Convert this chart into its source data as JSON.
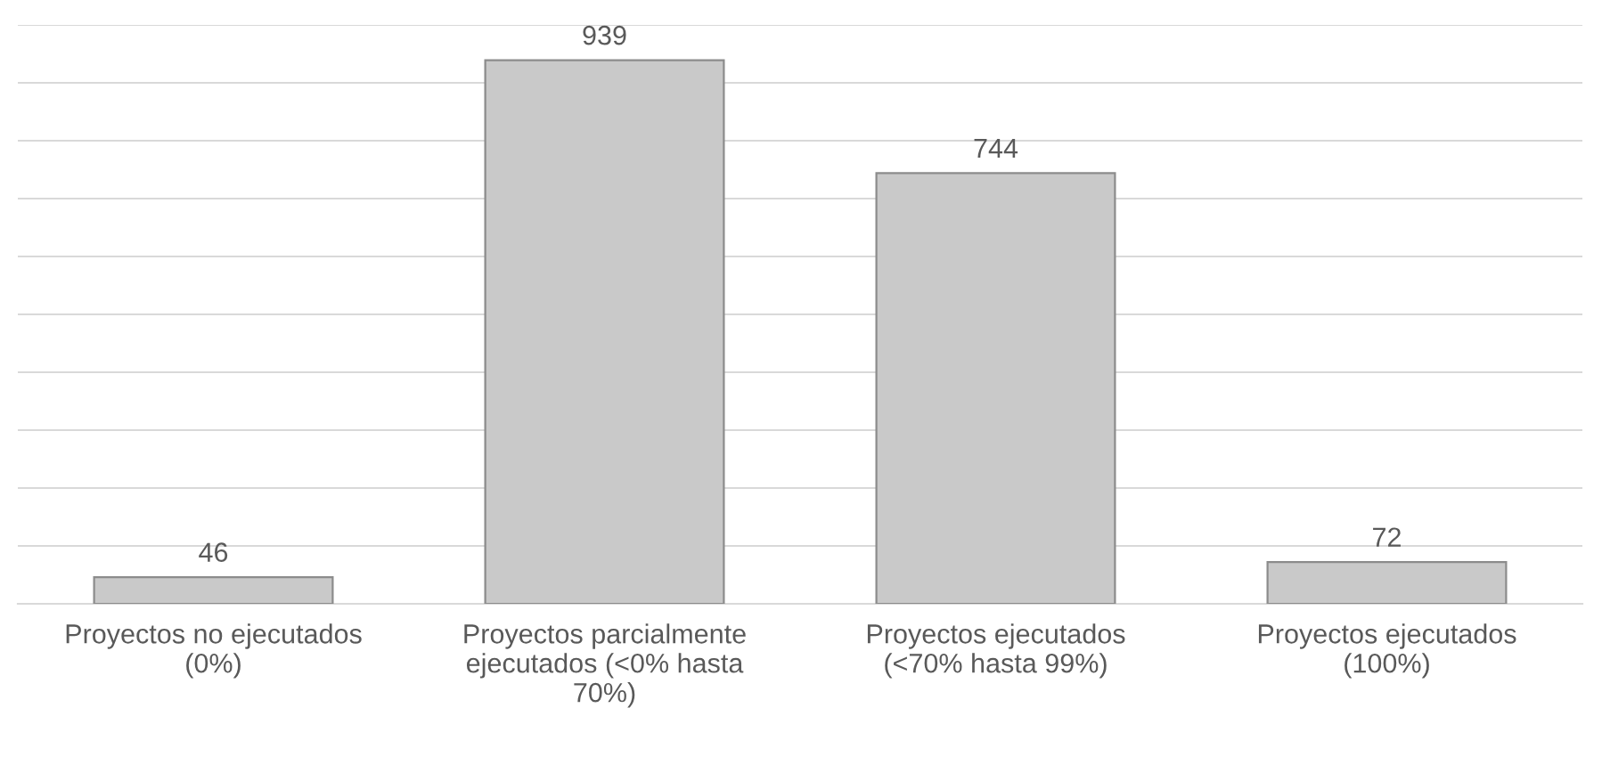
{
  "chart_data": {
    "type": "bar",
    "categories": [
      "Proyectos no ejecutados\n(0%)",
      "Proyectos parcialmente\nejecutados (<0% hasta\n70%)",
      "Proyectos ejecutados\n(<70% hasta 99%)",
      "Proyectos ejecutados\n(100%)"
    ],
    "values": [
      46,
      939,
      744,
      72
    ],
    "color": "#c9c9c9",
    "ylim": [
      0,
      1000
    ],
    "yticks": [
      {
        "value": 0,
        "label": null
      },
      {
        "value": 100,
        "label": null
      },
      {
        "value": 200,
        "label": null
      },
      {
        "value": 300,
        "label": null
      },
      {
        "value": 400,
        "label": null
      },
      {
        "value": 500,
        "label": null
      },
      {
        "value": 600,
        "label": null
      },
      {
        "value": 700,
        "label": null
      },
      {
        "value": 800,
        "label": null
      },
      {
        "value": 900,
        "label": null
      },
      {
        "value": 1000,
        "label": null
      }
    ],
    "tick_labels": "x",
    "grid": "y",
    "data_labels": true
  }
}
